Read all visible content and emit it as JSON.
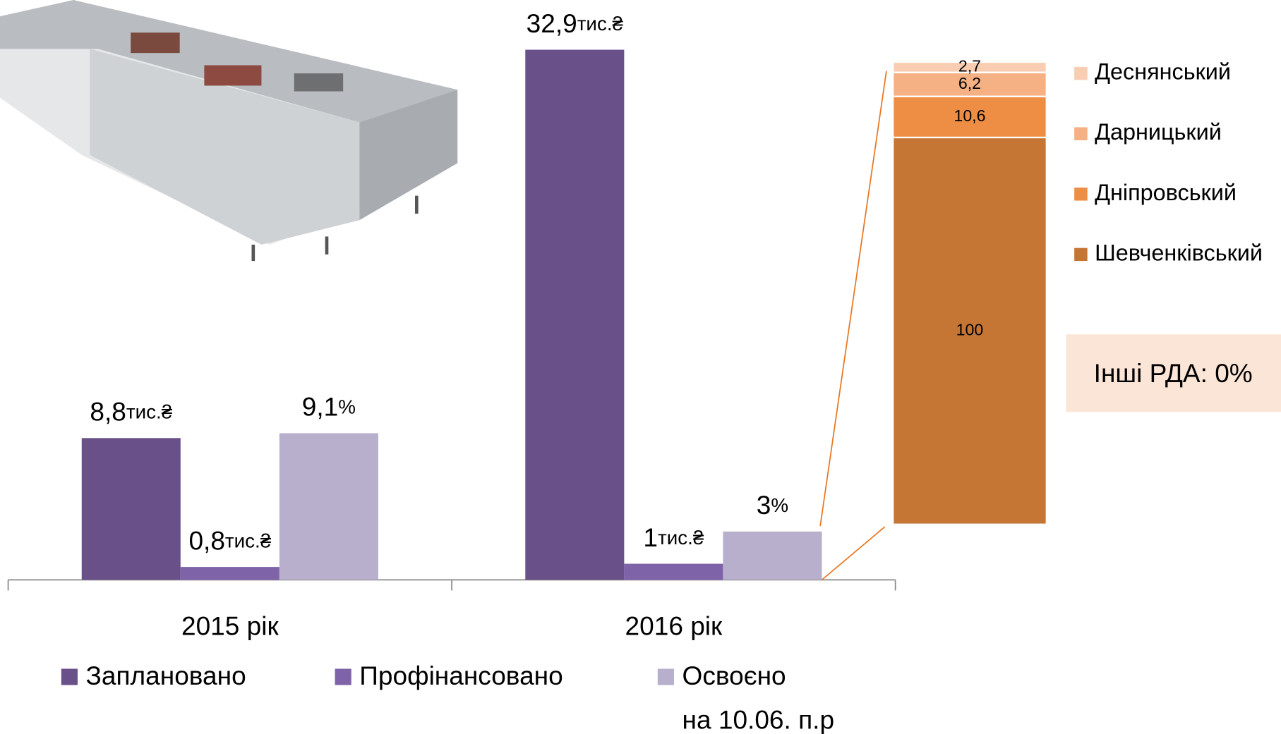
{
  "chart_data": [
    {
      "type": "bar",
      "categories": [
        "2015 рік",
        "2016 рік"
      ],
      "series": [
        {
          "name": "Заплановано",
          "color": "#6a5089",
          "values": [
            8.8,
            32.9
          ],
          "value_labels": [
            "8,8тис.₴",
            "32,9тис.₴"
          ]
        },
        {
          "name": "Профінансовано",
          "color": "#7f63a8",
          "values": [
            0.8,
            1
          ],
          "value_labels": [
            "0,8тис.₴",
            "1тис.₴"
          ]
        },
        {
          "name": "Освоєно\nна 10.06. п.р",
          "color": "#b8afcc",
          "values": [
            9.1,
            3
          ],
          "value_labels": [
            "9,1%",
            "3%"
          ]
        }
      ],
      "legend": "bottom"
    },
    {
      "type": "stacked_bar",
      "series": [
        {
          "name": "Шевченківський",
          "color": "#c67634",
          "values": [
            100
          ],
          "value_labels": [
            "100"
          ]
        },
        {
          "name": "Дніпровський",
          "color": "#ee8e45",
          "values": [
            10.6
          ],
          "value_labels": [
            "10,6"
          ]
        },
        {
          "name": "Дарницький",
          "color": "#f5b183",
          "values": [
            6.2
          ],
          "value_labels": [
            "6,2"
          ]
        },
        {
          "name": "Деснянський",
          "color": "#f8cdb2",
          "values": [
            2.7
          ],
          "value_labels": [
            "2,7"
          ]
        }
      ],
      "legend": "right",
      "annotation": "Інші РДА: 0%"
    }
  ]
}
